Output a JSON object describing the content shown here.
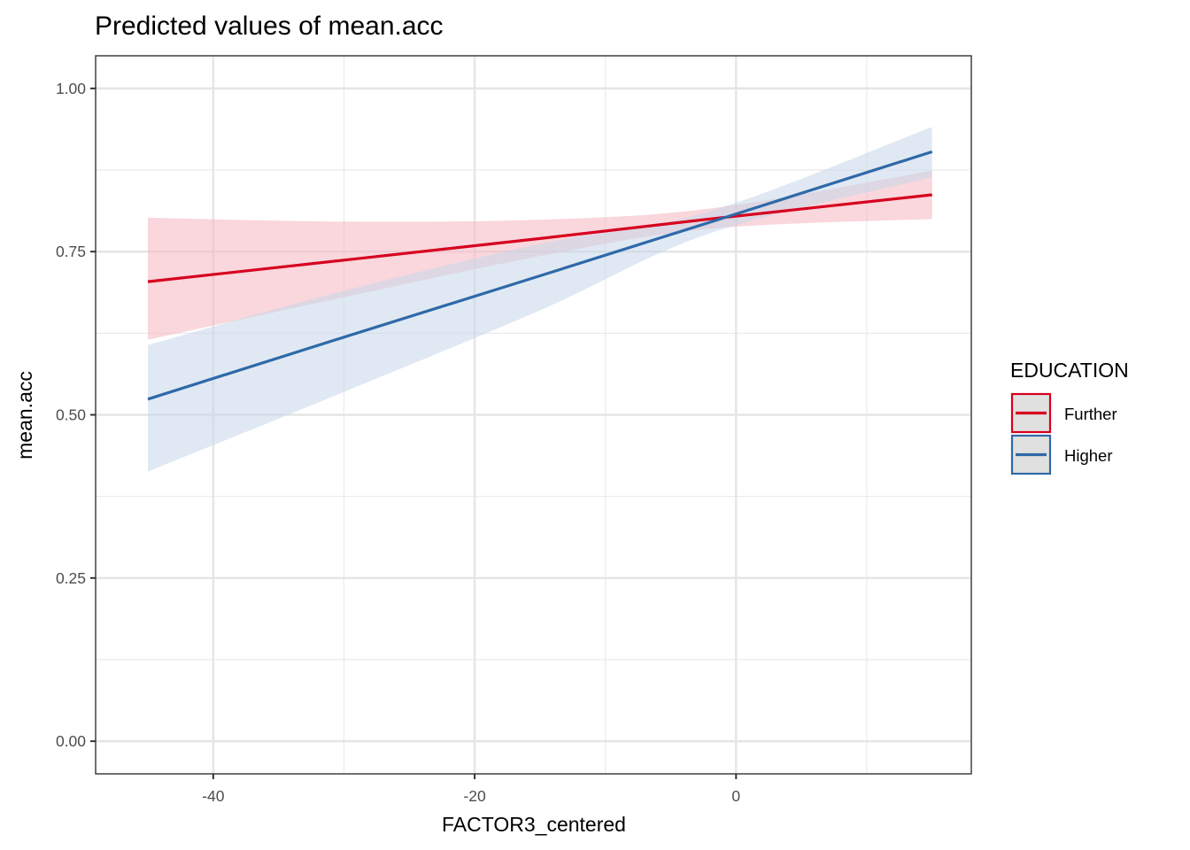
{
  "chart_data": {
    "type": "line",
    "title": "Predicted values of mean.acc",
    "xlabel": "FACTOR3_centered",
    "ylabel": "mean.acc",
    "xlim": [
      -49,
      18
    ],
    "ylim": [
      -0.05,
      1.05
    ],
    "x_ticks": [
      -40,
      -20,
      0
    ],
    "x_tick_labels": [
      "-40",
      "-20",
      "0"
    ],
    "x_minor_grid": [
      -30,
      -10,
      10
    ],
    "y_ticks": [
      0.0,
      0.25,
      0.5,
      0.75,
      1.0
    ],
    "y_tick_labels": [
      "0.00",
      "0.25",
      "0.50",
      "0.75",
      "1.00"
    ],
    "y_minor_grid": [
      0.125,
      0.375,
      0.625,
      0.875
    ],
    "grid": true,
    "legend": {
      "title": "EDUCATION",
      "position": "right"
    },
    "series": [
      {
        "name": "Further",
        "color": "#d7001f",
        "fill": "#f4b6bf",
        "x": [
          -45,
          -30,
          -15,
          -2,
          15
        ],
        "values": [
          0.704,
          0.737,
          0.77,
          0.8,
          0.837
        ],
        "ci_low": [
          0.615,
          0.68,
          0.743,
          0.785,
          0.8
        ],
        "ci_high": [
          0.802,
          0.796,
          0.799,
          0.816,
          0.874
        ]
      },
      {
        "name": "Higher",
        "color": "#2f69a8",
        "fill": "#c7d7ea",
        "x": [
          -45,
          -30,
          -15,
          -2,
          15
        ],
        "values": [
          0.524,
          0.619,
          0.713,
          0.795,
          0.903
        ],
        "ci_low": [
          0.413,
          0.535,
          0.66,
          0.778,
          0.864
        ],
        "ci_high": [
          0.607,
          0.69,
          0.762,
          0.812,
          0.941
        ]
      }
    ]
  }
}
